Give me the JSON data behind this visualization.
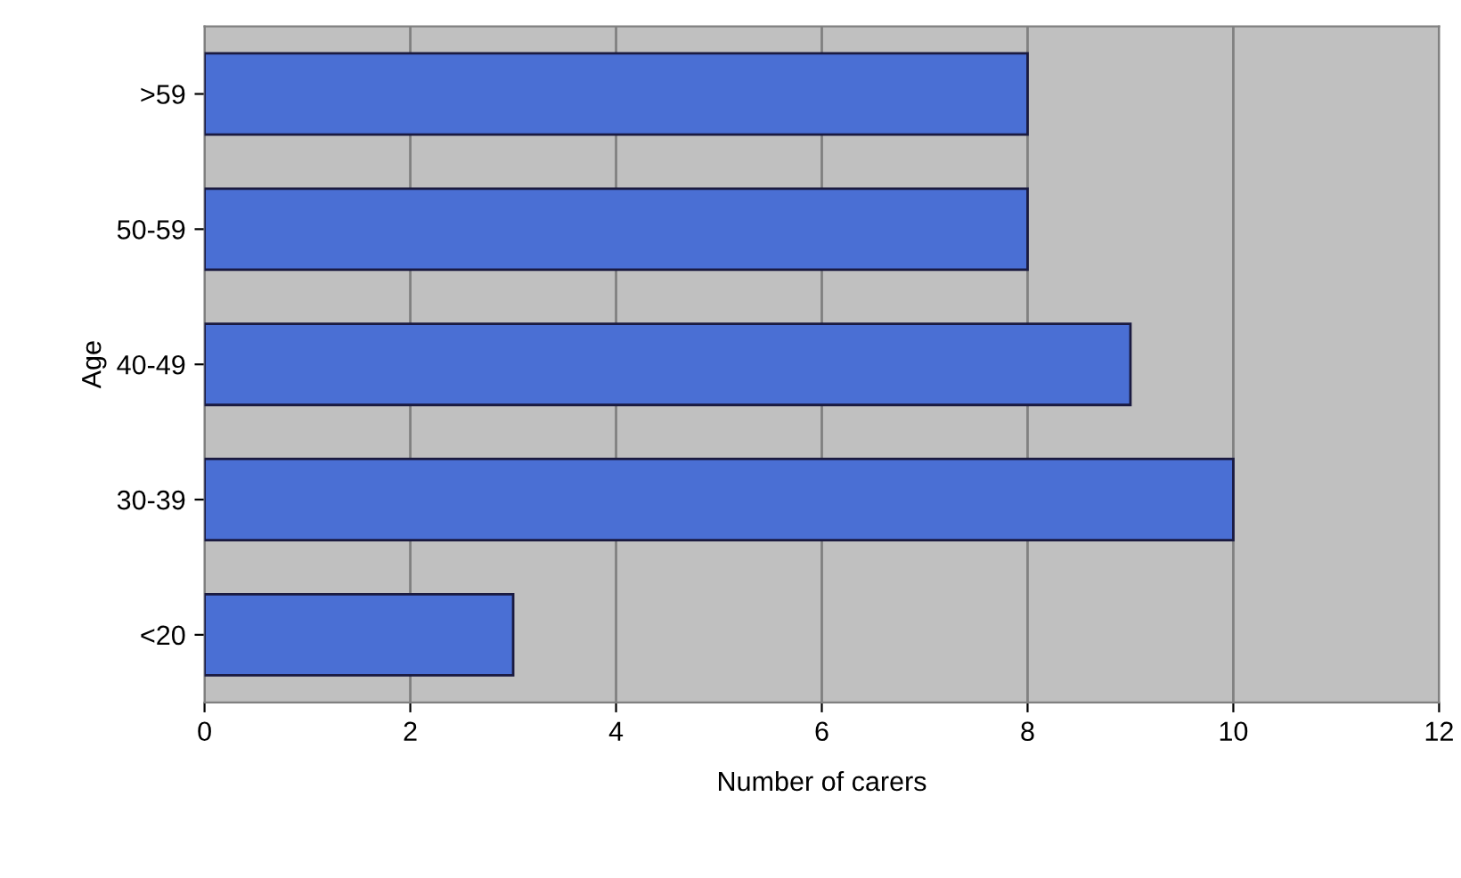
{
  "chart_data": {
    "type": "bar",
    "orientation": "horizontal",
    "xlabel": "Number of carers",
    "ylabel": "Age",
    "categories": [
      ">59",
      "50-59",
      "40-49",
      "30-39",
      "<20"
    ],
    "values": [
      8,
      8,
      9,
      10,
      3
    ],
    "color": "#4a6fd4",
    "xlim": [
      0,
      12
    ],
    "xticks": [
      0,
      2,
      4,
      6,
      8,
      10,
      12
    ],
    "grid": "x"
  }
}
